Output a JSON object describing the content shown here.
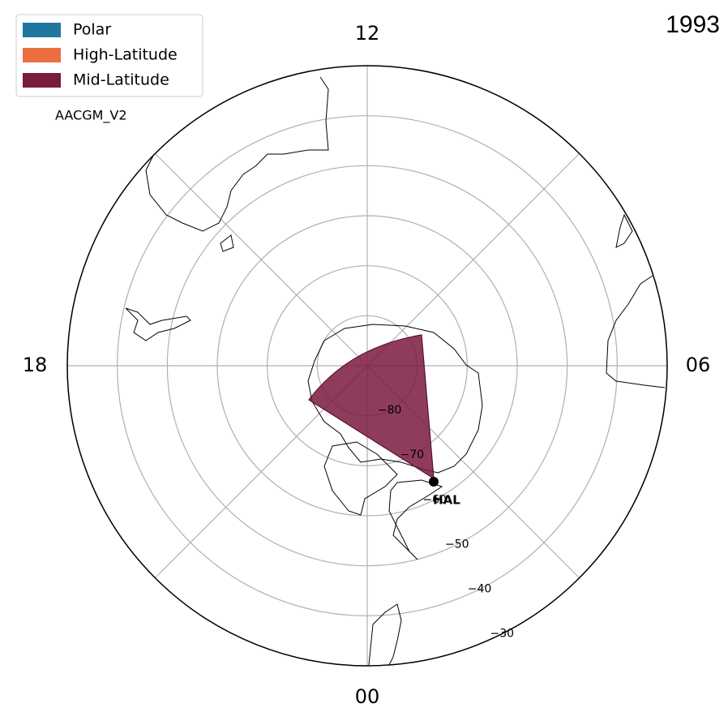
{
  "title": "1993",
  "legend": [
    {
      "name": "Polar",
      "color": "#1f77a0"
    },
    {
      "name": "High-Latitude",
      "color": "#ec6f3f"
    },
    {
      "name": "Mid-Latitude",
      "color": "#7b1a3f"
    }
  ],
  "coordinate_label": "AACGM_V2",
  "mlt_labels": {
    "top": "12",
    "right": "06",
    "bottom": "00",
    "left": "18"
  },
  "lat_lim": [
    -90,
    -30
  ],
  "lat_ticks": [
    {
      "value": -80,
      "label": "−80"
    },
    {
      "value": -70,
      "label": "−70"
    },
    {
      "value": -60,
      "label": "−60"
    },
    {
      "value": -50,
      "label": "−50"
    },
    {
      "value": -40,
      "label": "−40"
    },
    {
      "value": -30,
      "label": "−30"
    }
  ],
  "station": "HAL"
}
